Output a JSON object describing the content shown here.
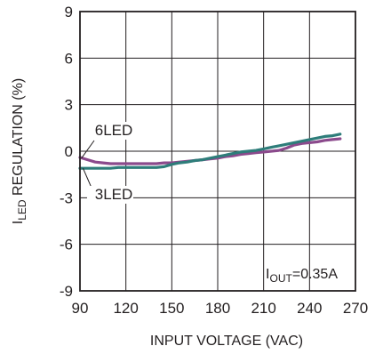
{
  "chart_data": {
    "type": "line",
    "title": "",
    "xlabel": "INPUT VOLTAGE (VAC)",
    "ylabel": {
      "prefix": "I",
      "subscript": "LED",
      "suffix": " REGULATION (%)"
    },
    "xlim": [
      90,
      270
    ],
    "ylim": [
      -9,
      9
    ],
    "xticks": [
      90,
      120,
      150,
      180,
      210,
      240,
      270
    ],
    "yticks": [
      9,
      6,
      3,
      0,
      -3,
      -6,
      -9
    ],
    "grid": true,
    "legend": "none",
    "annotation": {
      "prefix": "I",
      "subscript": "OUT",
      "suffix": "=0.35A"
    },
    "series": [
      {
        "name": "6LED",
        "color": "#8b4a8c",
        "x": [
          90,
          95,
          100,
          105,
          110,
          115,
          120,
          125,
          130,
          135,
          140,
          145,
          150,
          155,
          160,
          165,
          170,
          175,
          180,
          185,
          190,
          195,
          200,
          205,
          210,
          215,
          220,
          225,
          230,
          235,
          240,
          245,
          250,
          255,
          260
        ],
        "y": [
          -0.4,
          -0.55,
          -0.7,
          -0.75,
          -0.8,
          -0.8,
          -0.8,
          -0.8,
          -0.8,
          -0.8,
          -0.8,
          -0.75,
          -0.75,
          -0.7,
          -0.65,
          -0.6,
          -0.55,
          -0.5,
          -0.45,
          -0.35,
          -0.3,
          -0.2,
          -0.15,
          -0.1,
          -0.05,
          0.0,
          0.05,
          0.2,
          0.4,
          0.5,
          0.55,
          0.6,
          0.7,
          0.75,
          0.8
        ]
      },
      {
        "name": "3LED",
        "color": "#2e7d7a",
        "x": [
          90,
          95,
          100,
          105,
          110,
          115,
          120,
          125,
          130,
          135,
          140,
          145,
          150,
          155,
          160,
          165,
          170,
          175,
          180,
          185,
          190,
          195,
          200,
          205,
          210,
          215,
          220,
          225,
          230,
          235,
          240,
          245,
          250,
          255,
          260
        ],
        "y": [
          -1.1,
          -1.1,
          -1.1,
          -1.1,
          -1.1,
          -1.05,
          -1.05,
          -1.05,
          -1.05,
          -1.05,
          -1.05,
          -1.0,
          -0.85,
          -0.75,
          -0.7,
          -0.6,
          -0.55,
          -0.45,
          -0.35,
          -0.25,
          -0.15,
          -0.05,
          0.0,
          0.05,
          0.15,
          0.25,
          0.35,
          0.45,
          0.55,
          0.65,
          0.75,
          0.85,
          0.95,
          1.0,
          1.1
        ]
      }
    ],
    "callouts": [
      {
        "label": "6LED",
        "series": "6LED",
        "x": 91,
        "y": -0.45
      },
      {
        "label": "3LED",
        "series": "3LED",
        "x": 92,
        "y": -1.1
      }
    ]
  }
}
